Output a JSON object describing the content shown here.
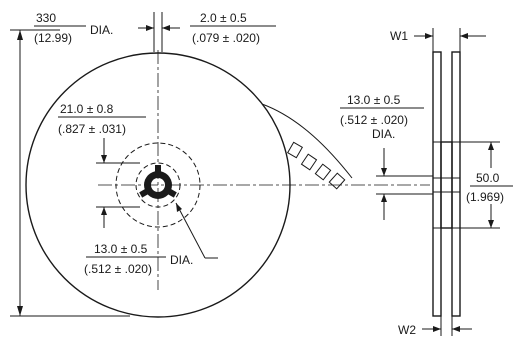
{
  "reel_diameter": {
    "metric": "330",
    "imperial": "(12.99)",
    "suffix": "DIA."
  },
  "slot_width": {
    "metric": "2.0 ± 0.5",
    "imperial": "(.079 ± .020)"
  },
  "hub_ring": {
    "metric": "21.0 ± 0.8",
    "imperial": "(.827 ± .031)"
  },
  "arbor_hole": {
    "metric": "13.0 ± 0.5",
    "imperial": "(.512 ± .020)",
    "suffix": "DIA."
  },
  "side_hub_hole": {
    "metric": "13.0 ± 0.5",
    "imperial": "(.512 ± .020)",
    "suffix": "DIA."
  },
  "hub_diameter": {
    "metric": "50.0",
    "imperial": "(1.969)"
  },
  "width_labels": {
    "w1": "W1",
    "w2": "W2"
  }
}
